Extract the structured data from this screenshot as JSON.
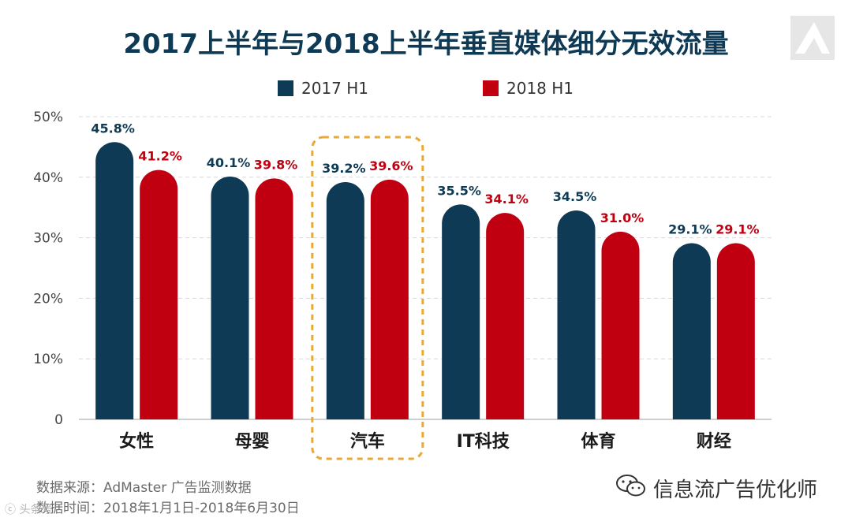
{
  "chart_data": {
    "type": "bar",
    "title": "2017上半年与2018上半年垂直媒体细分无效流量",
    "categories": [
      "女性",
      "母婴",
      "汽车",
      "IT科技",
      "体育",
      "财经"
    ],
    "series": [
      {
        "name": "2017 H1",
        "color": "#0e3a55",
        "values": [
          45.8,
          40.1,
          39.2,
          35.5,
          34.5,
          29.1
        ],
        "labels": [
          "45.8%",
          "40.1%",
          "39.2%",
          "35.5%",
          "34.5%",
          "29.1%"
        ]
      },
      {
        "name": "2018 H1",
        "color": "#c00010",
        "values": [
          41.2,
          39.8,
          39.6,
          34.1,
          31.0,
          29.1
        ],
        "labels": [
          "41.2%",
          "39.8%",
          "39.6%",
          "34.1%",
          "31.0%",
          "29.1%"
        ]
      }
    ],
    "yticks": [
      "0",
      "10%",
      "20%",
      "30%",
      "40%",
      "50%"
    ],
    "ylim": [
      0,
      50
    ],
    "highlight_category": "汽车",
    "highlight_color": "#e8a93a",
    "xlabel": "",
    "ylabel": "",
    "grid": true,
    "legend_position": "top-center"
  },
  "source": {
    "line1": "数据来源：AdMaster 广告监测数据",
    "line2": "数据时间：2018年1月1日-2018年6月30日"
  },
  "watermark": {
    "text": "信息流广告优化师",
    "corner": "ⓒ 头条号"
  }
}
